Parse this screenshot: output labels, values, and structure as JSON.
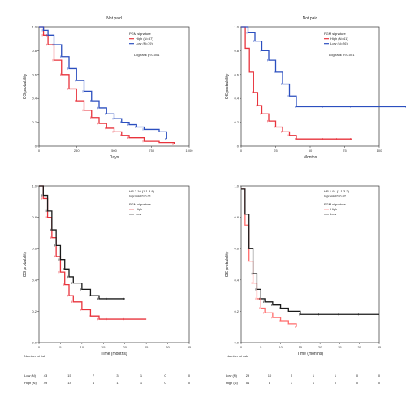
{
  "colors": {
    "red": "#e8333c",
    "blue": "#2b4fbf",
    "black": "#1a1a1a",
    "pink": "#ff6b6b",
    "censor": "#f2b5b5"
  },
  "chart_data": [
    {
      "type": "line",
      "title": "Not paid",
      "xlabel": "Days",
      "ylabel": "OS probability",
      "xlim": [
        0,
        1000
      ],
      "ylim": [
        0,
        1
      ],
      "xticks": [
        "0",
        "250",
        "500",
        "750",
        "1000"
      ],
      "yticks": [
        "0",
        "0.2",
        "0.4",
        "0.6",
        "0.8",
        "1.0"
      ],
      "legend_title": "PGM signature",
      "annotation": [
        "Log-rank p<0.001"
      ],
      "legend_position": "top-right",
      "series": [
        {
          "name": "High (N=57)",
          "color": "red",
          "x": [
            0,
            30,
            60,
            100,
            150,
            200,
            250,
            300,
            350,
            400,
            450,
            500,
            550,
            600,
            700,
            800,
            900
          ],
          "y": [
            1.0,
            0.93,
            0.85,
            0.72,
            0.6,
            0.48,
            0.38,
            0.3,
            0.24,
            0.19,
            0.15,
            0.12,
            0.09,
            0.07,
            0.04,
            0.03,
            0.02
          ]
        },
        {
          "name": "Low (N=79)",
          "color": "blue",
          "x": [
            0,
            30,
            60,
            100,
            150,
            200,
            250,
            300,
            350,
            400,
            450,
            500,
            550,
            600,
            650,
            700,
            800,
            850
          ],
          "y": [
            1.0,
            0.97,
            0.93,
            0.85,
            0.75,
            0.65,
            0.55,
            0.46,
            0.38,
            0.32,
            0.27,
            0.23,
            0.2,
            0.18,
            0.16,
            0.14,
            0.12,
            0.06
          ]
        }
      ]
    },
    {
      "type": "line",
      "title": "Not paid",
      "xlabel": "Months",
      "ylabel": "OS probability",
      "xlim": [
        0,
        100
      ],
      "ylim": [
        0,
        1
      ],
      "xticks": [
        "0",
        "25",
        "50",
        "75",
        "100"
      ],
      "yticks": [
        "0",
        "0.2",
        "0.4",
        "0.6",
        "0.8",
        "1.0"
      ],
      "legend_title": "PGM signature",
      "annotation": [
        "Log-rank p<0.001"
      ],
      "legend_position": "top-right",
      "series": [
        {
          "name": "High (N=41)",
          "color": "red",
          "x": [
            0,
            3,
            6,
            9,
            12,
            15,
            20,
            25,
            30,
            35,
            40,
            50,
            60,
            70,
            80
          ],
          "y": [
            1.0,
            0.82,
            0.62,
            0.45,
            0.34,
            0.27,
            0.21,
            0.16,
            0.12,
            0.09,
            0.06,
            0.06,
            0.06,
            0.06,
            0.06
          ]
        },
        {
          "name": "Low (N=26)",
          "color": "blue",
          "x": [
            0,
            5,
            10,
            15,
            20,
            25,
            30,
            35,
            40,
            60,
            80,
            100,
            120
          ],
          "y": [
            1.0,
            0.95,
            0.88,
            0.8,
            0.72,
            0.62,
            0.52,
            0.42,
            0.33,
            0.33,
            0.33,
            0.33,
            0.33
          ]
        }
      ]
    },
    {
      "type": "line",
      "title": "",
      "xlabel": "Time (months)",
      "ylabel": "OS probability",
      "xlim": [
        0,
        35
      ],
      "ylim": [
        0,
        1
      ],
      "xticks": [
        "0",
        "5",
        "10",
        "15",
        "20",
        "25",
        "30",
        "35"
      ],
      "yticks": [
        "0.0",
        "0.2",
        "0.4",
        "0.6",
        "0.8",
        "1.0"
      ],
      "legend_title": "PGM signature",
      "annotation": [
        "HR 2.10 (1.1-3.8)",
        "logrank P=0.01"
      ],
      "legend_position": "top-right",
      "series": [
        {
          "name": "High",
          "color": "red",
          "x": [
            0,
            1,
            2,
            3,
            4,
            5,
            6,
            7,
            8,
            10,
            12,
            14,
            16,
            20,
            25
          ],
          "y": [
            1.0,
            0.92,
            0.8,
            0.67,
            0.55,
            0.45,
            0.37,
            0.3,
            0.26,
            0.21,
            0.17,
            0.15,
            0.15,
            0.15,
            0.15
          ]
        },
        {
          "name": "Low",
          "color": "black",
          "x": [
            0,
            1,
            2,
            3,
            4,
            5,
            6,
            7,
            8,
            10,
            12,
            14,
            16,
            20
          ],
          "y": [
            1.0,
            0.94,
            0.84,
            0.72,
            0.62,
            0.53,
            0.47,
            0.42,
            0.38,
            0.34,
            0.3,
            0.28,
            0.28,
            0.28
          ]
        }
      ],
      "risk_table": {
        "title": "Number at risk",
        "rows": [
          {
            "label": "Low (N)",
            "values": [
              "43",
              "15",
              "7",
              "3",
              "1",
              "0",
              "0"
            ]
          },
          {
            "label": "High (N)",
            "values": [
              "49",
              "14",
              "4",
              "1",
              "1",
              "0",
              "0"
            ]
          }
        ]
      }
    },
    {
      "type": "line",
      "title": "",
      "xlabel": "Time (months)",
      "ylabel": "OS probability",
      "xlim": [
        0,
        35
      ],
      "ylim": [
        0,
        1
      ],
      "xticks": [
        "0",
        "5",
        "10",
        "15",
        "20",
        "25",
        "30",
        "35"
      ],
      "yticks": [
        "0.0",
        "0.2",
        "0.4",
        "0.6",
        "0.8",
        "1.0"
      ],
      "legend_title": "PGM signature",
      "annotation": [
        "HR 1.91 (1.1-3.2)",
        "logrank P=0.02"
      ],
      "legend_position": "top-right",
      "series": [
        {
          "name": "High",
          "color": "pink",
          "x": [
            0,
            1,
            2,
            3,
            4,
            5,
            6,
            8,
            10,
            12,
            14
          ],
          "y": [
            0.98,
            0.75,
            0.52,
            0.38,
            0.28,
            0.22,
            0.19,
            0.16,
            0.14,
            0.12,
            0.1
          ]
        },
        {
          "name": "Low",
          "color": "black",
          "x": [
            0,
            1,
            2,
            3,
            4,
            5,
            6,
            8,
            10,
            12,
            15,
            20,
            25,
            30,
            35
          ],
          "y": [
            0.98,
            0.82,
            0.6,
            0.44,
            0.34,
            0.28,
            0.26,
            0.24,
            0.22,
            0.2,
            0.18,
            0.18,
            0.18,
            0.18,
            0.18
          ]
        }
      ],
      "risk_table": {
        "title": "Number at risk",
        "rows": [
          {
            "label": "Low (N)",
            "values": [
              "29",
              "10",
              "5",
              "1",
              "1",
              "0",
              "0"
            ]
          },
          {
            "label": "High (N)",
            "values": [
              "51",
              "8",
              "3",
              "1",
              "0",
              "0",
              "0"
            ]
          }
        ]
      }
    }
  ]
}
